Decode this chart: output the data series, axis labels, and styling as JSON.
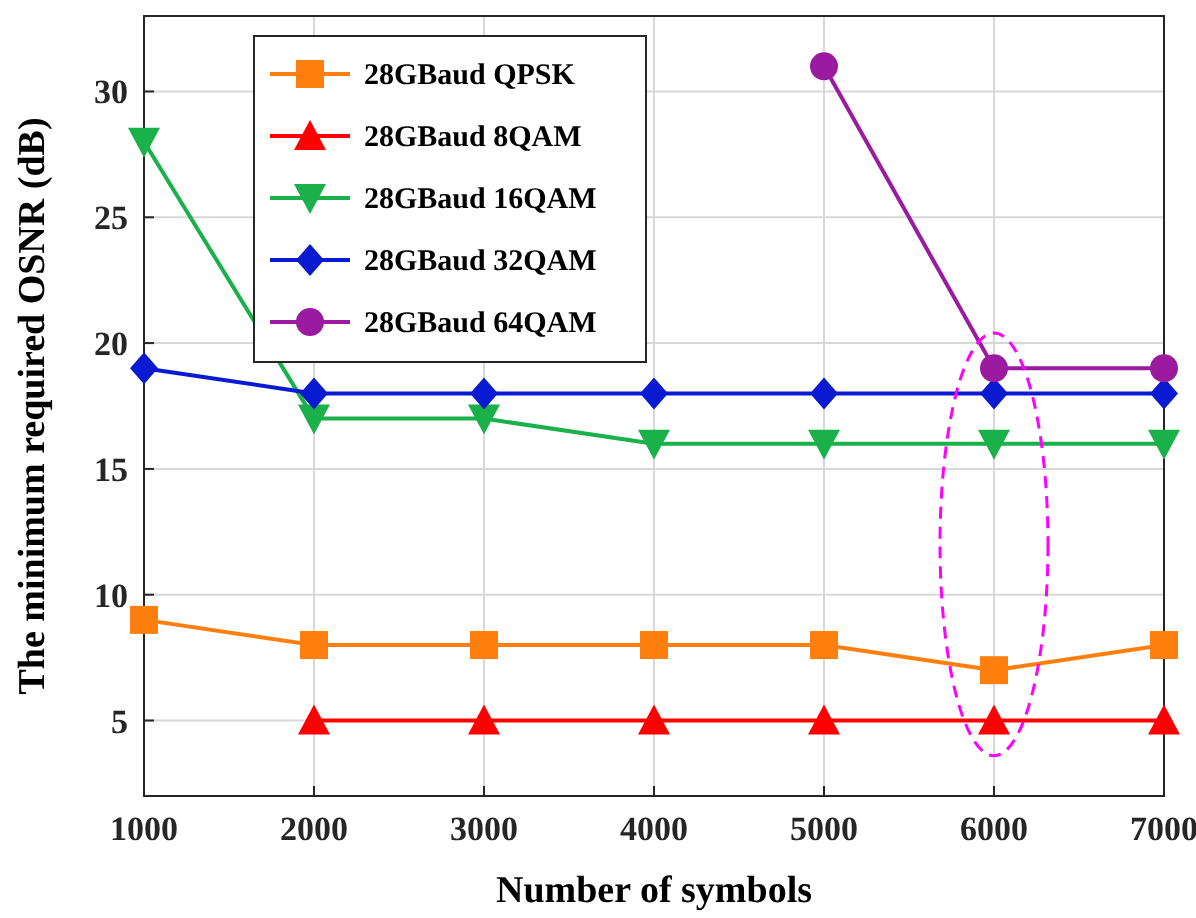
{
  "chart_data": {
    "type": "line",
    "xlabel": "Number of symbols",
    "ylabel": "The minimum required OSNR (dB)",
    "x": [
      1000,
      2000,
      3000,
      4000,
      5000,
      6000,
      7000
    ],
    "series": [
      {
        "name": "28GBaud QPSK",
        "color": "#ff7f0e",
        "marker": "square",
        "values": [
          9,
          8,
          8,
          8,
          8,
          7,
          8
        ]
      },
      {
        "name": "28GBaud 8QAM",
        "color": "#ff0000",
        "marker": "triangle",
        "values": [
          null,
          5,
          5,
          5,
          5,
          5,
          5
        ]
      },
      {
        "name": "28GBaud 16QAM",
        "color": "#1ab04a",
        "marker": "triangle-down",
        "values": [
          28,
          17,
          17,
          16,
          16,
          16,
          16
        ]
      },
      {
        "name": "28GBaud 32QAM",
        "color": "#0a1ad0",
        "marker": "diamond",
        "values": [
          19,
          18,
          18,
          18,
          18,
          18,
          18
        ]
      },
      {
        "name": "28GBaud 64QAM",
        "color": "#9b1ba0",
        "marker": "circle",
        "values": [
          null,
          null,
          null,
          null,
          31,
          19,
          19
        ]
      }
    ],
    "xlim": [
      1000,
      7000
    ],
    "ylim": [
      2,
      33
    ],
    "xticks": [
      1000,
      2000,
      3000,
      4000,
      5000,
      6000,
      7000
    ],
    "yticks": [
      5,
      10,
      15,
      20,
      25,
      30
    ],
    "grid": true,
    "legend": "top left"
  }
}
